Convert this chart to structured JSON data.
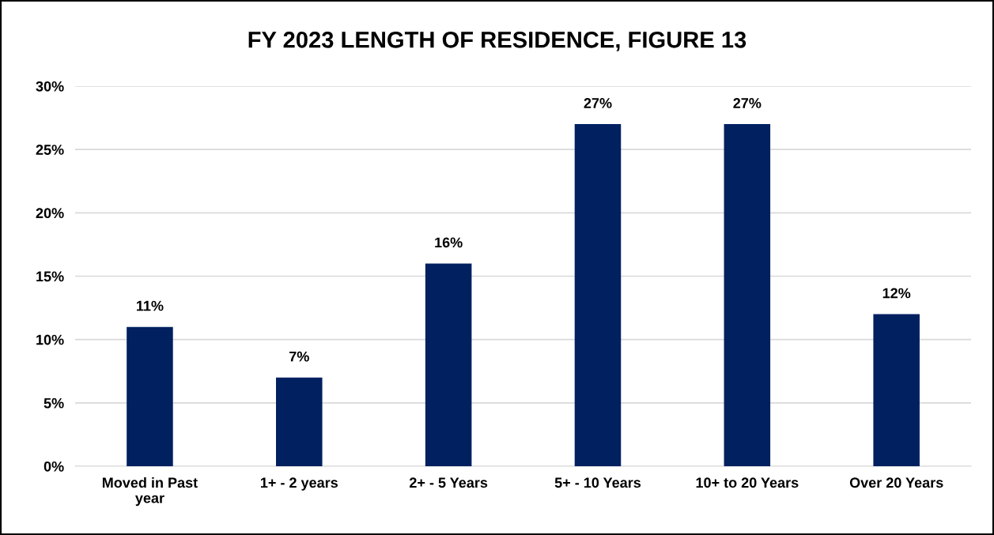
{
  "chart_data": {
    "type": "bar",
    "title": "FY 2023 LENGTH OF RESIDENCE, FIGURE 13",
    "categories": [
      "Moved in Past year",
      "1+ - 2 years",
      "2+ - 5 Years",
      "5+ - 10 Years",
      "10+ to 20 Years",
      "Over 20 Years"
    ],
    "values": [
      11,
      7,
      16,
      27,
      27,
      12
    ],
    "value_labels": [
      "11%",
      "7%",
      "16%",
      "27%",
      "27%",
      "12%"
    ],
    "color": "#002060",
    "ylim": [
      0,
      30
    ],
    "yticks": [
      {
        "value": 0,
        "label": "0%"
      },
      {
        "value": 5,
        "label": "5%"
      },
      {
        "value": 10,
        "label": "10%"
      },
      {
        "value": 15,
        "label": "15%"
      },
      {
        "value": 20,
        "label": "20%"
      },
      {
        "value": 25,
        "label": "25%"
      },
      {
        "value": 30,
        "label": "30%"
      }
    ],
    "grid": "y",
    "legend": false
  }
}
